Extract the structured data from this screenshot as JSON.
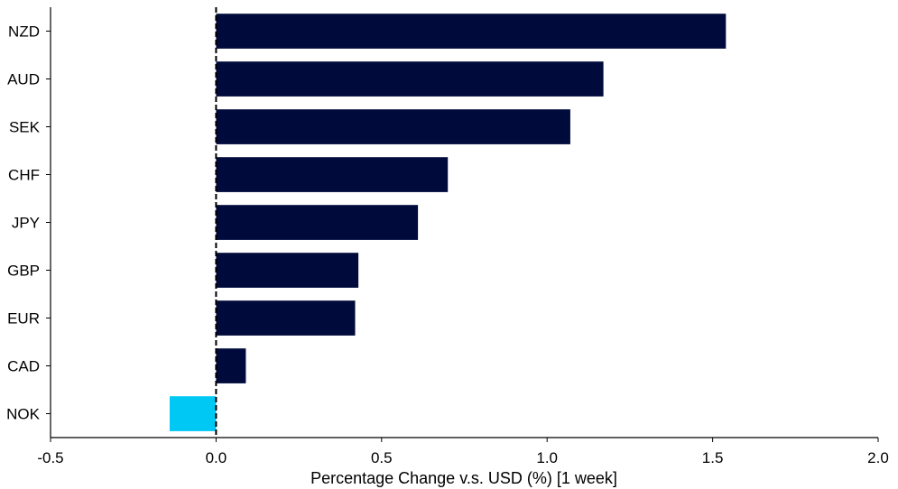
{
  "chart_data": {
    "type": "bar",
    "orientation": "horizontal",
    "categories": [
      "NZD",
      "AUD",
      "SEK",
      "CHF",
      "JPY",
      "GBP",
      "EUR",
      "CAD",
      "NOK"
    ],
    "values": [
      1.54,
      1.17,
      1.07,
      0.7,
      0.61,
      0.43,
      0.42,
      0.09,
      -0.14
    ],
    "xlabel": "Percentage Change v.s. USD (%) [1 week]",
    "xlim": [
      -0.5,
      2.0
    ],
    "xticks": [
      "-0.5",
      "0.0",
      "0.5",
      "1.0",
      "1.5",
      "2.0"
    ],
    "grid": false,
    "colors": {
      "positive": "#000b3b",
      "negative": "#00c8f5"
    }
  }
}
